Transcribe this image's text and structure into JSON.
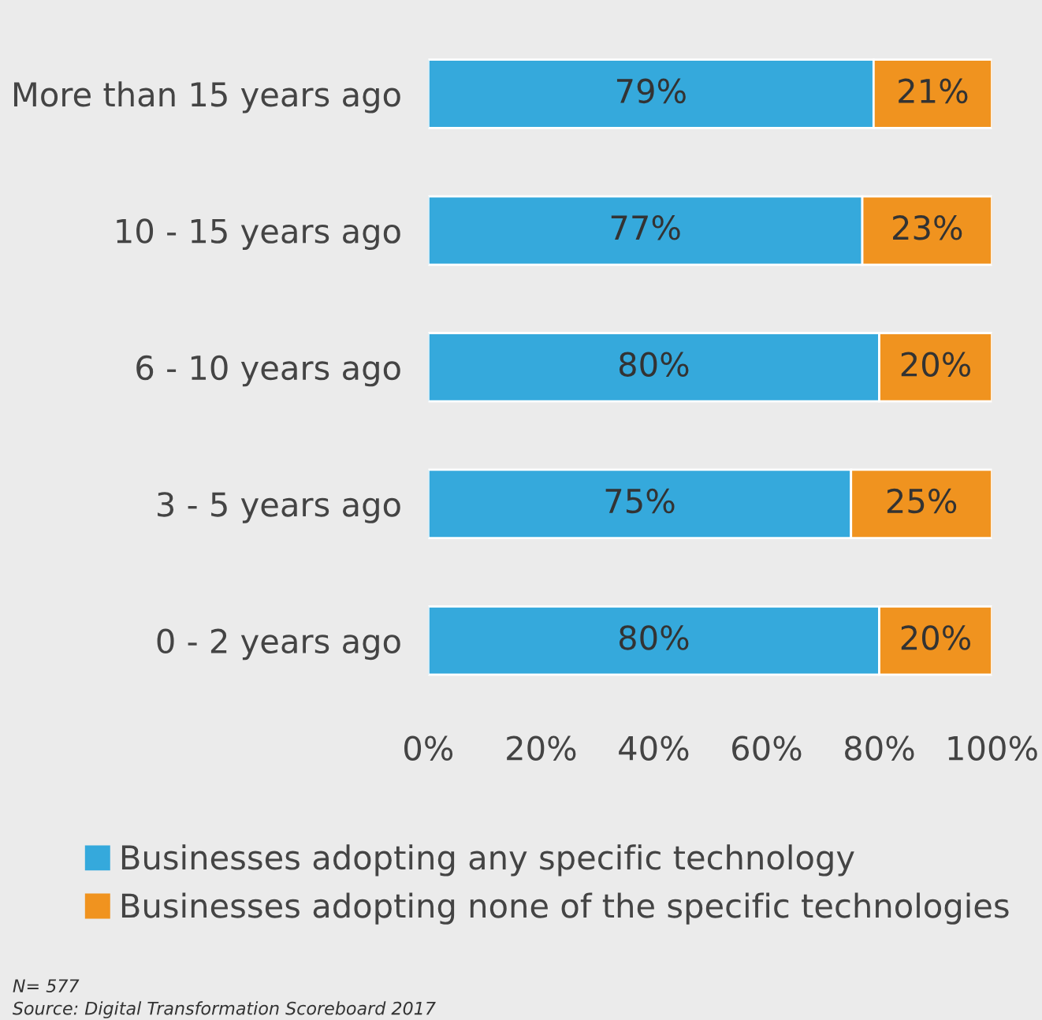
{
  "chart_data": {
    "type": "bar",
    "orientation": "horizontal",
    "stacked": true,
    "categories": [
      "More than 15 years ago",
      "10 - 15 years ago",
      "6 - 10 years ago",
      "3 - 5 years ago",
      "0 - 2 years ago"
    ],
    "series": [
      {
        "name": "Businesses adopting any specific technology",
        "color": "#35a9dc",
        "values": [
          79,
          77,
          80,
          75,
          80
        ],
        "value_labels": [
          "79%",
          "77%",
          "80%",
          "75%",
          "80%"
        ]
      },
      {
        "name": "Businesses adopting none of the specific technologies",
        "color": "#f0931f",
        "values": [
          21,
          23,
          20,
          25,
          20
        ],
        "value_labels": [
          "21%",
          "23%",
          "20%",
          "25%",
          "20%"
        ]
      }
    ],
    "xlim": [
      0,
      100
    ],
    "xticks": [
      {
        "value": 0,
        "label": "0%"
      },
      {
        "value": 20,
        "label": "20%"
      },
      {
        "value": 40,
        "label": "40%"
      },
      {
        "value": 60,
        "label": "60%"
      },
      {
        "value": 80,
        "label": "80%"
      },
      {
        "value": 100,
        "label": "100%"
      }
    ],
    "grid": false,
    "legend": "bottom",
    "annotations": [
      "N= 577",
      "Source: Digital Transformation Scoreboard 2017"
    ]
  }
}
